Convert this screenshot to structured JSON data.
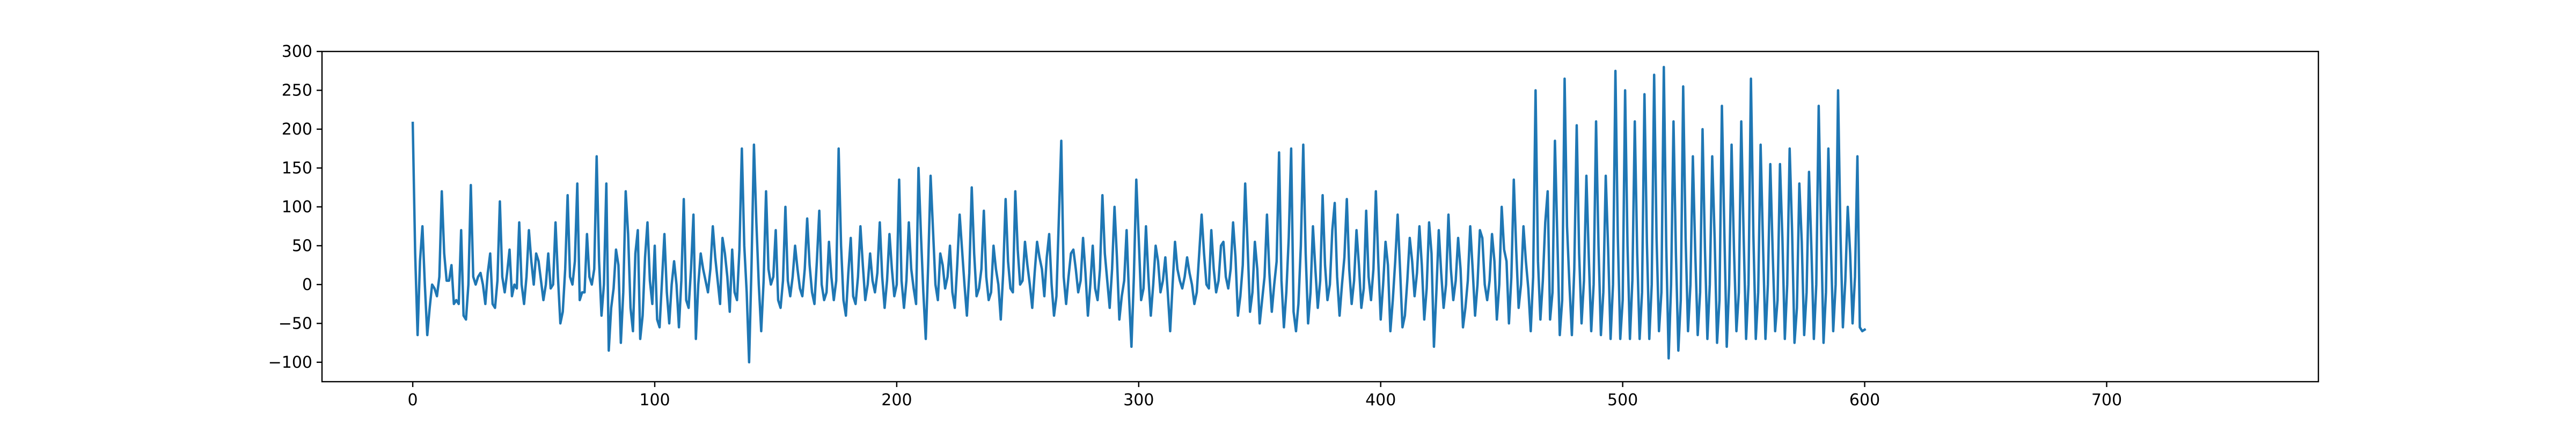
{
  "chart_data": {
    "type": "line",
    "title": "",
    "xlabel": "",
    "ylabel": "",
    "xlim": [
      -37.5,
      787.5
    ],
    "ylim": [
      -125,
      300
    ],
    "x_ticks": [
      0,
      100,
      200,
      300,
      400,
      500,
      600,
      700
    ],
    "y_ticks": [
      -100,
      -50,
      0,
      50,
      100,
      150,
      200,
      250,
      300
    ],
    "x_tick_labels": [
      "0",
      "100",
      "200",
      "300",
      "400",
      "500",
      "600",
      "700"
    ],
    "y_tick_labels": [
      "−100",
      "−50",
      "0",
      "50",
      "100",
      "150",
      "200",
      "250",
      "300"
    ],
    "grid": false,
    "legend": "none",
    "line_color": "#1f77b4",
    "series": [
      {
        "x_start": 0,
        "x_step": 1,
        "values": [
          208,
          40,
          -65,
          30,
          75,
          0,
          -65,
          -30,
          0,
          -5,
          -15,
          10,
          120,
          40,
          5,
          5,
          25,
          -25,
          -20,
          -25,
          70,
          -40,
          -45,
          0,
          128,
          10,
          0,
          10,
          15,
          0,
          -25,
          15,
          40,
          -25,
          -30,
          5,
          107,
          10,
          -10,
          15,
          45,
          -15,
          0,
          -5,
          80,
          0,
          -25,
          10,
          70,
          30,
          0,
          40,
          30,
          5,
          -20,
          0,
          40,
          -5,
          0,
          80,
          10,
          -50,
          -35,
          20,
          115,
          10,
          0,
          30,
          130,
          -20,
          -10,
          -10,
          65,
          10,
          0,
          20,
          165,
          30,
          -40,
          0,
          130,
          -85,
          -30,
          -5,
          45,
          25,
          -75,
          -10,
          120,
          65,
          -30,
          -60,
          40,
          70,
          -70,
          -40,
          35,
          80,
          5,
          -25,
          50,
          -45,
          -55,
          5,
          65,
          -10,
          -50,
          0,
          30,
          0,
          -55,
          5,
          110,
          -20,
          -30,
          20,
          90,
          -70,
          0,
          40,
          20,
          5,
          -10,
          20,
          75,
          35,
          5,
          -25,
          60,
          40,
          10,
          -35,
          45,
          -10,
          -20,
          45,
          175,
          50,
          -10,
          -100,
          25,
          180,
          80,
          0,
          -60,
          5,
          120,
          20,
          0,
          10,
          70,
          -20,
          -30,
          5,
          100,
          5,
          -15,
          10,
          50,
          20,
          -5,
          -15,
          20,
          85,
          25,
          -10,
          -25,
          30,
          95,
          0,
          -20,
          -10,
          55,
          10,
          -20,
          5,
          175,
          50,
          -20,
          -40,
          15,
          60,
          -15,
          -25,
          10,
          75,
          25,
          -20,
          0,
          40,
          5,
          -10,
          15,
          80,
          10,
          -30,
          5,
          65,
          20,
          -15,
          0,
          135,
          5,
          -30,
          5,
          80,
          20,
          -5,
          -25,
          150,
          65,
          -10,
          -70,
          25,
          140,
          70,
          0,
          -20,
          40,
          25,
          -5,
          10,
          50,
          -10,
          -30,
          25,
          90,
          45,
          0,
          -40,
          15,
          125,
          40,
          -15,
          -5,
          20,
          95,
          10,
          -20,
          -10,
          50,
          20,
          0,
          -45,
          15,
          110,
          30,
          -5,
          -10,
          120,
          45,
          0,
          5,
          55,
          25,
          0,
          -30,
          15,
          55,
          35,
          20,
          -15,
          35,
          65,
          0,
          -40,
          -15,
          85,
          185,
          10,
          -25,
          10,
          40,
          45,
          20,
          -10,
          5,
          60,
          15,
          -40,
          0,
          50,
          -5,
          -20,
          20,
          115,
          40,
          5,
          -30,
          20,
          100,
          35,
          -45,
          -15,
          5,
          70,
          -15,
          -80,
          10,
          135,
          60,
          -20,
          -5,
          75,
          10,
          -40,
          0,
          50,
          30,
          -10,
          5,
          35,
          -10,
          -60,
          0,
          55,
          20,
          5,
          -5,
          10,
          35,
          15,
          0,
          -25,
          -10,
          40,
          90,
          40,
          0,
          -5,
          70,
          20,
          -10,
          5,
          50,
          55,
          10,
          -5,
          20,
          80,
          35,
          -40,
          -15,
          25,
          130,
          50,
          -35,
          -10,
          55,
          20,
          -50,
          -20,
          10,
          90,
          15,
          -35,
          0,
          30,
          170,
          5,
          -55,
          -10,
          60,
          175,
          -35,
          -60,
          -25,
          50,
          180,
          40,
          -50,
          -10,
          75,
          20,
          -30,
          5,
          115,
          25,
          -20,
          0,
          70,
          105,
          10,
          -40,
          0,
          35,
          110,
          20,
          -25,
          5,
          70,
          25,
          -30,
          -5,
          95,
          10,
          -20,
          20,
          120,
          30,
          -45,
          0,
          55,
          25,
          -60,
          -20,
          30,
          90,
          20,
          -55,
          -40,
          5,
          60,
          30,
          -15,
          15,
          75,
          25,
          -45,
          -5,
          80,
          40,
          -80,
          -10,
          70,
          15,
          -30,
          0,
          90,
          20,
          -20,
          5,
          60,
          20,
          -55,
          -30,
          5,
          75,
          20,
          -40,
          0,
          70,
          60,
          0,
          -20,
          5,
          65,
          30,
          -45,
          0,
          100,
          45,
          30,
          -50,
          10,
          135,
          45,
          -30,
          0,
          75,
          30,
          -5,
          -60,
          10,
          250,
          30,
          -45,
          5,
          80,
          120,
          -45,
          -10,
          185,
          60,
          -65,
          -20,
          265,
          75,
          0,
          -65,
          20,
          205,
          40,
          -50,
          5,
          140,
          35,
          -60,
          0,
          210,
          50,
          -65,
          -10,
          140,
          45,
          -70,
          0,
          275,
          60,
          -70,
          -20,
          250,
          50,
          -70,
          5,
          210,
          40,
          -70,
          -10,
          245,
          55,
          -70,
          0,
          270,
          60,
          -60,
          -10,
          280,
          50,
          -95,
          0,
          210,
          40,
          -85,
          -20,
          255,
          60,
          -60,
          0,
          165,
          40,
          -65,
          -10,
          200,
          45,
          -70,
          0,
          165,
          60,
          -75,
          -20,
          230,
          70,
          -80,
          0,
          180,
          45,
          -60,
          -10,
          210,
          60,
          -70,
          0,
          265,
          65,
          -70,
          -10,
          180,
          50,
          -70,
          0,
          155,
          40,
          -60,
          -20,
          155,
          60,
          -70,
          0,
          175,
          70,
          -75,
          -30,
          130,
          55,
          -65,
          -10,
          145,
          45,
          -70,
          0,
          230,
          70,
          -75,
          -10,
          175,
          55,
          -60,
          0,
          250,
          65,
          -55,
          5,
          100,
          40,
          -50,
          10,
          165,
          -55,
          -60,
          -58
        ]
      }
    ]
  }
}
